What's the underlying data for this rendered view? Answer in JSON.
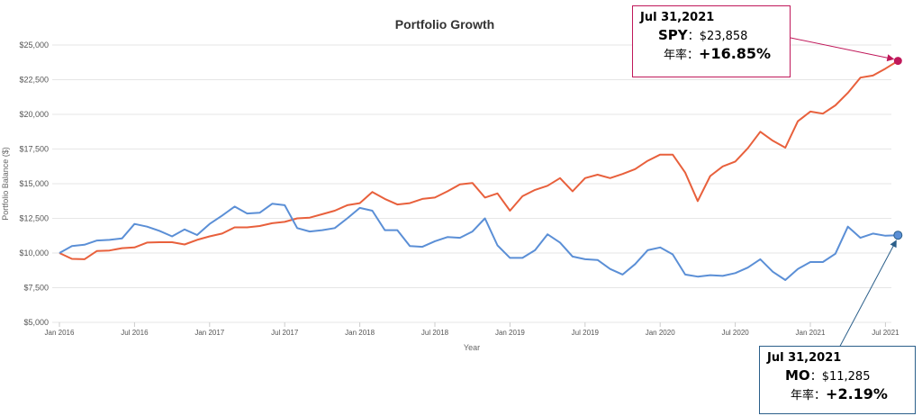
{
  "chart_data": {
    "type": "line",
    "title": "Portfolio Growth",
    "xlabel": "Year",
    "ylabel": "Portfolio Balance ($)",
    "ylim": [
      5000,
      25000
    ],
    "yticks": [
      "$5,000",
      "$7,500",
      "$10,000",
      "$12,500",
      "$15,000",
      "$17,500",
      "$20,000",
      "$22,500",
      "$25,000"
    ],
    "ytick_values": [
      5000,
      7500,
      10000,
      12500,
      15000,
      17500,
      20000,
      22500,
      25000
    ],
    "xticks": [
      "Jan 2016",
      "Jul 2016",
      "Jan 2017",
      "Jul 2017",
      "Jan 2018",
      "Jul 2018",
      "Jan 2019",
      "Jul 2019",
      "Jan 2020",
      "Jul 2020",
      "Jan 2021",
      "Jul 2021"
    ],
    "xtick_month_index": [
      0,
      6,
      12,
      18,
      24,
      30,
      36,
      42,
      48,
      54,
      60,
      66
    ],
    "grid": true,
    "series": [
      {
        "name": "SPY",
        "color": "#e8603c",
        "values": [
          10000,
          9580,
          9550,
          10150,
          10180,
          10350,
          10400,
          10750,
          10780,
          10780,
          10620,
          10950,
          11200,
          11400,
          11850,
          11850,
          11950,
          12150,
          12250,
          12500,
          12550,
          12800,
          13050,
          13450,
          13600,
          14400,
          13900,
          13500,
          13600,
          13900,
          14000,
          14450,
          14950,
          15050,
          14000,
          14300,
          13050,
          14100,
          14550,
          14850,
          15400,
          14450,
          15400,
          15650,
          15400,
          15700,
          16050,
          16650,
          17100,
          17100,
          15800,
          13750,
          15550,
          16250,
          16600,
          17550,
          18750,
          18100,
          17600,
          19500,
          20200,
          20050,
          20650,
          21550,
          22650,
          22800,
          23300,
          23858
        ]
      },
      {
        "name": "MO",
        "color": "#5b8fd6",
        "values": [
          10000,
          10500,
          10600,
          10900,
          10950,
          11050,
          12100,
          11900,
          11600,
          11200,
          11700,
          11300,
          12100,
          12700,
          13350,
          12850,
          12900,
          13550,
          13450,
          11800,
          11550,
          11650,
          11800,
          12500,
          13250,
          13050,
          11650,
          11650,
          10500,
          10450,
          10850,
          11150,
          11100,
          11550,
          12500,
          10550,
          9650,
          9650,
          10200,
          11350,
          10750,
          9750,
          9550,
          9500,
          8850,
          8450,
          9200,
          10200,
          10400,
          9900,
          8450,
          8300,
          8400,
          8350,
          8550,
          8950,
          9550,
          8650,
          8050,
          8850,
          9350,
          9350,
          9950,
          11900,
          11100,
          11400,
          11250,
          11285
        ]
      }
    ],
    "annotations": [
      {
        "date": "Jul 31,2021",
        "ticker": "SPY",
        "value_text": "$23,858",
        "return_label": "年率",
        "return_text": "+16.85%",
        "color": "#c0185a"
      },
      {
        "date": "Jul 31,2021",
        "ticker": "MO",
        "value_text": "$11,285",
        "return_label": "年率",
        "return_text": "+2.19%",
        "color": "#2b5f8a"
      }
    ]
  },
  "separator": "："
}
